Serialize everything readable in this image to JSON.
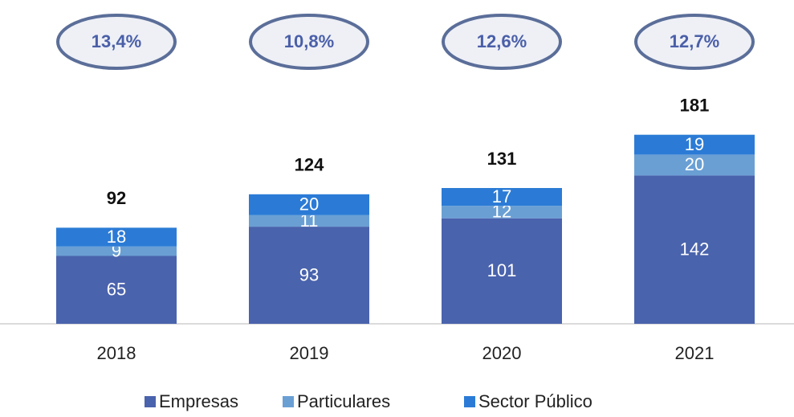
{
  "chart_data": {
    "type": "stacked_bar",
    "categories": [
      "2018",
      "2019",
      "2020",
      "2021"
    ],
    "series": [
      {
        "name": "Empresas",
        "color": "#4a63ad",
        "values": [
          65,
          93,
          101,
          142
        ]
      },
      {
        "name": "Particulares",
        "color": "#6a9fd4",
        "values": [
          9,
          11,
          12,
          20
        ]
      },
      {
        "name": "Sector Público",
        "color": "#2b7bd6",
        "values": [
          18,
          20,
          17,
          19
        ]
      }
    ],
    "totals": [
      92,
      124,
      131,
      181
    ],
    "growth": {
      "values": [
        13.4,
        10.8,
        12.6,
        12.7
      ],
      "value_labels": [
        "13,4%",
        "10,8%",
        "12,6%",
        "12,7%"
      ]
    },
    "legend": "bottom"
  }
}
